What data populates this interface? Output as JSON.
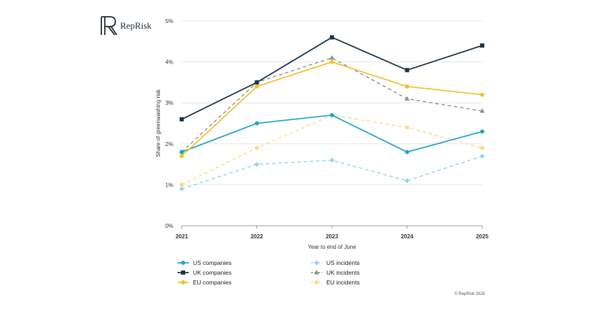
{
  "brand": {
    "name": "RepRisk",
    "icon": "reprisk-r-logo-icon"
  },
  "copyright": "© RepRisk 2025",
  "chart_data": {
    "type": "line",
    "title": "",
    "xlabel": "Year to end of June",
    "ylabel": "Share of greenwashing risk",
    "categories": [
      "2021",
      "2022",
      "2023",
      "2024",
      "2025"
    ],
    "y_ticks": [
      "0%",
      "1%",
      "2%",
      "3%",
      "4%",
      "5%"
    ],
    "ylim": [
      0,
      5
    ],
    "unit": "%",
    "grid": true,
    "legend_position": "bottom",
    "series": [
      {
        "name": "US companies",
        "values": [
          1.8,
          2.5,
          2.7,
          1.8,
          2.3
        ],
        "color": "#22a7c6",
        "dashed": false,
        "marker": "circle"
      },
      {
        "name": "UK companies",
        "values": [
          2.6,
          3.5,
          4.6,
          3.8,
          4.4
        ],
        "color": "#1b3446",
        "dashed": false,
        "marker": "square"
      },
      {
        "name": "EU companies",
        "values": [
          1.7,
          3.4,
          4.0,
          3.4,
          3.2
        ],
        "color": "#f2c12e",
        "dashed": false,
        "marker": "circle"
      },
      {
        "name": "US incidents",
        "values": [
          0.9,
          1.5,
          1.6,
          1.1,
          1.7
        ],
        "color": "#8fd6e6",
        "dashed": true,
        "marker": "diamond"
      },
      {
        "name": "UK incidents",
        "values": [
          1.8,
          3.5,
          4.1,
          3.1,
          2.8
        ],
        "color": "#8a8f99",
        "dashed": true,
        "marker": "triangle"
      },
      {
        "name": "EU incidents",
        "values": [
          1.0,
          1.9,
          2.7,
          2.4,
          1.9
        ],
        "color": "#f8dd8a",
        "dashed": true,
        "marker": "circle"
      }
    ]
  }
}
